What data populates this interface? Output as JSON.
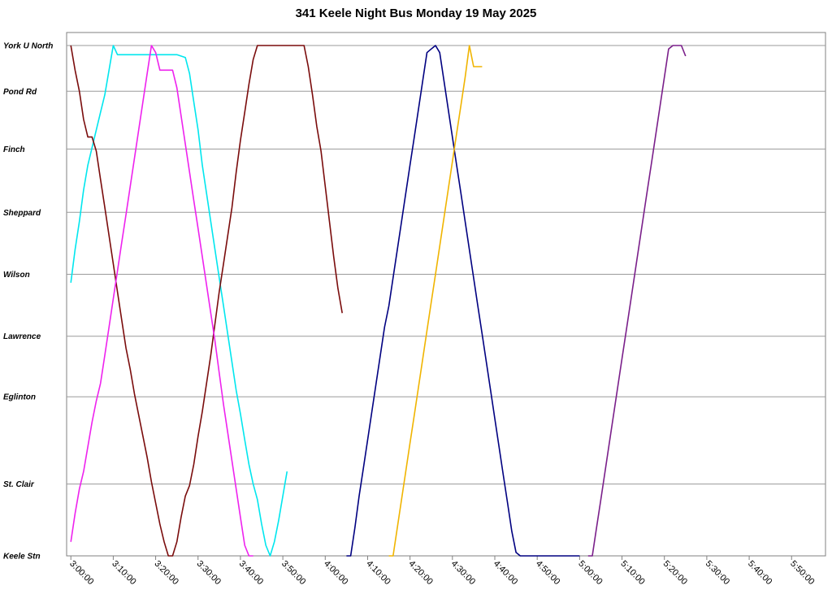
{
  "chart_data": {
    "type": "line",
    "title": "341 Keele Night Bus Monday 19 May 2025",
    "xlabel": "",
    "ylabel": "",
    "x_axis": {
      "unit": "time",
      "min": "2:59:00",
      "max": "5:58:00",
      "ticks": [
        "3:00:00",
        "3:10:00",
        "3:20:00",
        "3:30:00",
        "3:40:00",
        "3:50:00",
        "4:00:00",
        "4:10:00",
        "4:20:00",
        "4:30:00",
        "4:40:00",
        "4:50:00",
        "5:00:00",
        "5:10:00",
        "5:20:00",
        "5:30:00",
        "5:40:00",
        "5:50:00"
      ]
    },
    "y_axis": {
      "stops": [
        {
          "name": "Keele Stn",
          "pos": 0
        },
        {
          "name": "St. Clair",
          "pos": 1.02
        },
        {
          "name": "Eglinton",
          "pos": 2.26
        },
        {
          "name": "Lawrence",
          "pos": 3.12
        },
        {
          "name": "Wilson",
          "pos": 4.0
        },
        {
          "name": "Sheppard",
          "pos": 4.88
        },
        {
          "name": "Finch",
          "pos": 5.78
        },
        {
          "name": "Pond Rd",
          "pos": 6.6
        },
        {
          "name": "York U North",
          "pos": 7.25
        }
      ]
    },
    "grid": true,
    "legend": "none",
    "series": [
      {
        "color": "#00e6ee",
        "points": [
          [
            "3:00:00",
            3.88
          ],
          [
            "3:01:00",
            4.35
          ],
          [
            "3:02:00",
            4.75
          ],
          [
            "3:03:00",
            5.2
          ],
          [
            "3:04:00",
            5.55
          ],
          [
            "3:05:00",
            5.8
          ],
          [
            "3:06:00",
            6.05
          ],
          [
            "3:07:00",
            6.3
          ],
          [
            "3:08:00",
            6.55
          ],
          [
            "3:09:00",
            6.9
          ],
          [
            "3:10:00",
            7.25
          ],
          [
            "3:11:00",
            7.12
          ],
          [
            "3:14:00",
            7.12
          ],
          [
            "3:20:00",
            7.12
          ],
          [
            "3:25:00",
            7.12
          ],
          [
            "3:27:00",
            7.08
          ],
          [
            "3:28:00",
            6.85
          ],
          [
            "3:29:00",
            6.45
          ],
          [
            "3:30:00",
            6.05
          ],
          [
            "3:31:00",
            5.55
          ],
          [
            "3:32:00",
            5.15
          ],
          [
            "3:33:00",
            4.75
          ],
          [
            "3:34:00",
            4.35
          ],
          [
            "3:35:00",
            3.95
          ],
          [
            "3:36:00",
            3.55
          ],
          [
            "3:37:00",
            3.15
          ],
          [
            "3:38:00",
            2.75
          ],
          [
            "3:39:00",
            2.35
          ],
          [
            "3:40:00",
            2.02
          ],
          [
            "3:41:00",
            1.65
          ],
          [
            "3:42:00",
            1.3
          ],
          [
            "3:43:00",
            1.02
          ],
          [
            "3:44:00",
            0.8
          ],
          [
            "3:45:00",
            0.45
          ],
          [
            "3:46:00",
            0.15
          ],
          [
            "3:47:00",
            0.0
          ],
          [
            "3:48:00",
            0.2
          ],
          [
            "3:49:00",
            0.5
          ],
          [
            "3:50:00",
            0.85
          ],
          [
            "3:51:00",
            1.2
          ]
        ]
      },
      {
        "color": "#7a0c0c",
        "points": [
          [
            "3:00:00",
            7.25
          ],
          [
            "3:01:00",
            6.9
          ],
          [
            "3:02:00",
            6.6
          ],
          [
            "3:03:00",
            6.2
          ],
          [
            "3:04:00",
            5.95
          ],
          [
            "3:05:00",
            5.95
          ],
          [
            "3:06:00",
            5.75
          ],
          [
            "3:07:00",
            5.35
          ],
          [
            "3:08:00",
            4.95
          ],
          [
            "3:09:00",
            4.55
          ],
          [
            "3:10:00",
            4.15
          ],
          [
            "3:11:00",
            3.75
          ],
          [
            "3:12:00",
            3.35
          ],
          [
            "3:13:00",
            2.95
          ],
          [
            "3:14:00",
            2.65
          ],
          [
            "3:15:00",
            2.3
          ],
          [
            "3:16:00",
            2.0
          ],
          [
            "3:17:00",
            1.7
          ],
          [
            "3:18:00",
            1.4
          ],
          [
            "3:19:00",
            1.05
          ],
          [
            "3:20:00",
            0.75
          ],
          [
            "3:21:00",
            0.45
          ],
          [
            "3:22:00",
            0.2
          ],
          [
            "3:23:00",
            0.0
          ],
          [
            "3:24:00",
            0.0
          ],
          [
            "3:25:00",
            0.2
          ],
          [
            "3:26:00",
            0.55
          ],
          [
            "3:27:00",
            0.85
          ],
          [
            "3:28:00",
            1.0
          ],
          [
            "3:29:00",
            1.3
          ],
          [
            "3:30:00",
            1.7
          ],
          [
            "3:31:00",
            2.05
          ],
          [
            "3:32:00",
            2.45
          ],
          [
            "3:33:00",
            2.85
          ],
          [
            "3:34:00",
            3.3
          ],
          [
            "3:35:00",
            3.75
          ],
          [
            "3:36:00",
            4.15
          ],
          [
            "3:37:00",
            4.55
          ],
          [
            "3:38:00",
            4.95
          ],
          [
            "3:39:00",
            5.45
          ],
          [
            "3:40:00",
            5.9
          ],
          [
            "3:41:00",
            6.3
          ],
          [
            "3:42:00",
            6.7
          ],
          [
            "3:43:00",
            7.05
          ],
          [
            "3:44:00",
            7.25
          ],
          [
            "3:55:00",
            7.25
          ],
          [
            "3:56:00",
            6.95
          ],
          [
            "3:57:00",
            6.55
          ],
          [
            "3:58:00",
            6.1
          ],
          [
            "3:59:00",
            5.75
          ],
          [
            "4:00:00",
            5.25
          ],
          [
            "4:01:00",
            4.75
          ],
          [
            "4:02:00",
            4.25
          ],
          [
            "4:03:00",
            3.8
          ],
          [
            "4:04:00",
            3.45
          ]
        ]
      },
      {
        "color": "#ee22ee",
        "points": [
          [
            "3:00:00",
            0.2
          ],
          [
            "3:01:00",
            0.6
          ],
          [
            "3:02:00",
            0.95
          ],
          [
            "3:03:00",
            1.2
          ],
          [
            "3:04:00",
            1.55
          ],
          [
            "3:05:00",
            1.9
          ],
          [
            "3:06:00",
            2.2
          ],
          [
            "3:07:00",
            2.45
          ],
          [
            "3:08:00",
            2.85
          ],
          [
            "3:09:00",
            3.25
          ],
          [
            "3:10:00",
            3.65
          ],
          [
            "3:11:00",
            4.05
          ],
          [
            "3:12:00",
            4.45
          ],
          [
            "3:13:00",
            4.85
          ],
          [
            "3:14:00",
            5.25
          ],
          [
            "3:15:00",
            5.65
          ],
          [
            "3:16:00",
            6.05
          ],
          [
            "3:17:00",
            6.45
          ],
          [
            "3:18:00",
            6.85
          ],
          [
            "3:19:00",
            7.25
          ],
          [
            "3:20:00",
            7.15
          ],
          [
            "3:21:00",
            6.9
          ],
          [
            "3:24:00",
            6.9
          ],
          [
            "3:25:00",
            6.65
          ],
          [
            "3:26:00",
            6.25
          ],
          [
            "3:27:00",
            5.85
          ],
          [
            "3:28:00",
            5.45
          ],
          [
            "3:29:00",
            5.05
          ],
          [
            "3:30:00",
            4.65
          ],
          [
            "3:31:00",
            4.25
          ],
          [
            "3:32:00",
            3.85
          ],
          [
            "3:33:00",
            3.45
          ],
          [
            "3:34:00",
            3.05
          ],
          [
            "3:35:00",
            2.6
          ],
          [
            "3:36:00",
            2.15
          ],
          [
            "3:37:00",
            1.75
          ],
          [
            "3:38:00",
            1.35
          ],
          [
            "3:39:00",
            0.95
          ],
          [
            "3:40:00",
            0.55
          ],
          [
            "3:41:00",
            0.15
          ],
          [
            "3:42:00",
            0.0
          ],
          [
            "3:43:00",
            0.0
          ]
        ]
      },
      {
        "color": "#000080",
        "points": [
          [
            "4:05:00",
            0.0
          ],
          [
            "4:06:00",
            0.0
          ],
          [
            "4:07:00",
            0.4
          ],
          [
            "4:08:00",
            0.85
          ],
          [
            "4:09:00",
            1.25
          ],
          [
            "4:10:00",
            1.65
          ],
          [
            "4:11:00",
            2.05
          ],
          [
            "4:12:00",
            2.45
          ],
          [
            "4:13:00",
            2.85
          ],
          [
            "4:14:00",
            3.25
          ],
          [
            "4:15:00",
            3.55
          ],
          [
            "4:16:00",
            3.95
          ],
          [
            "4:17:00",
            4.35
          ],
          [
            "4:18:00",
            4.75
          ],
          [
            "4:19:00",
            5.15
          ],
          [
            "4:20:00",
            5.55
          ],
          [
            "4:21:00",
            5.95
          ],
          [
            "4:22:00",
            6.35
          ],
          [
            "4:23:00",
            6.75
          ],
          [
            "4:24:00",
            7.15
          ],
          [
            "4:25:00",
            7.2
          ],
          [
            "4:26:00",
            7.25
          ],
          [
            "4:27:00",
            7.15
          ],
          [
            "4:28:00",
            6.75
          ],
          [
            "4:29:00",
            6.35
          ],
          [
            "4:30:00",
            5.95
          ],
          [
            "4:31:00",
            5.55
          ],
          [
            "4:32:00",
            5.15
          ],
          [
            "4:33:00",
            4.75
          ],
          [
            "4:34:00",
            4.35
          ],
          [
            "4:35:00",
            3.95
          ],
          [
            "4:36:00",
            3.55
          ],
          [
            "4:37:00",
            3.15
          ],
          [
            "4:38:00",
            2.75
          ],
          [
            "4:39:00",
            2.35
          ],
          [
            "4:40:00",
            1.95
          ],
          [
            "4:41:00",
            1.55
          ],
          [
            "4:42:00",
            1.15
          ],
          [
            "4:43:00",
            0.75
          ],
          [
            "4:44:00",
            0.35
          ],
          [
            "4:45:00",
            0.05
          ],
          [
            "4:46:00",
            0.0
          ],
          [
            "5:00:00",
            0.0
          ]
        ]
      },
      {
        "color": "#f0b400",
        "points": [
          [
            "4:15:00",
            0.0
          ],
          [
            "4:16:00",
            0.0
          ],
          [
            "4:17:00",
            0.4
          ],
          [
            "4:18:00",
            0.8
          ],
          [
            "4:19:00",
            1.2
          ],
          [
            "4:20:00",
            1.6
          ],
          [
            "4:21:00",
            2.0
          ],
          [
            "4:22:00",
            2.4
          ],
          [
            "4:23:00",
            2.8
          ],
          [
            "4:24:00",
            3.2
          ],
          [
            "4:25:00",
            3.6
          ],
          [
            "4:26:00",
            4.0
          ],
          [
            "4:27:00",
            4.4
          ],
          [
            "4:28:00",
            4.8
          ],
          [
            "4:29:00",
            5.2
          ],
          [
            "4:30:00",
            5.6
          ],
          [
            "4:31:00",
            6.0
          ],
          [
            "4:32:00",
            6.4
          ],
          [
            "4:33:00",
            6.8
          ],
          [
            "4:34:00",
            7.25
          ],
          [
            "4:35:00",
            6.95
          ],
          [
            "4:36:00",
            6.95
          ],
          [
            "4:37:00",
            6.95
          ]
        ]
      },
      {
        "color": "#7a1f8a",
        "points": [
          [
            "5:02:00",
            0.0
          ],
          [
            "5:03:00",
            0.0
          ],
          [
            "5:04:00",
            0.4
          ],
          [
            "5:05:00",
            0.8
          ],
          [
            "5:06:00",
            1.2
          ],
          [
            "5:07:00",
            1.6
          ],
          [
            "5:08:00",
            2.0
          ],
          [
            "5:09:00",
            2.4
          ],
          [
            "5:10:00",
            2.8
          ],
          [
            "5:11:00",
            3.2
          ],
          [
            "5:12:00",
            3.6
          ],
          [
            "5:13:00",
            4.0
          ],
          [
            "5:14:00",
            4.4
          ],
          [
            "5:15:00",
            4.8
          ],
          [
            "5:16:00",
            5.2
          ],
          [
            "5:17:00",
            5.6
          ],
          [
            "5:18:00",
            6.0
          ],
          [
            "5:19:00",
            6.4
          ],
          [
            "5:20:00",
            6.8
          ],
          [
            "5:21:00",
            7.2
          ],
          [
            "5:22:00",
            7.25
          ],
          [
            "5:24:00",
            7.25
          ],
          [
            "5:25:00",
            7.1
          ]
        ]
      }
    ]
  }
}
